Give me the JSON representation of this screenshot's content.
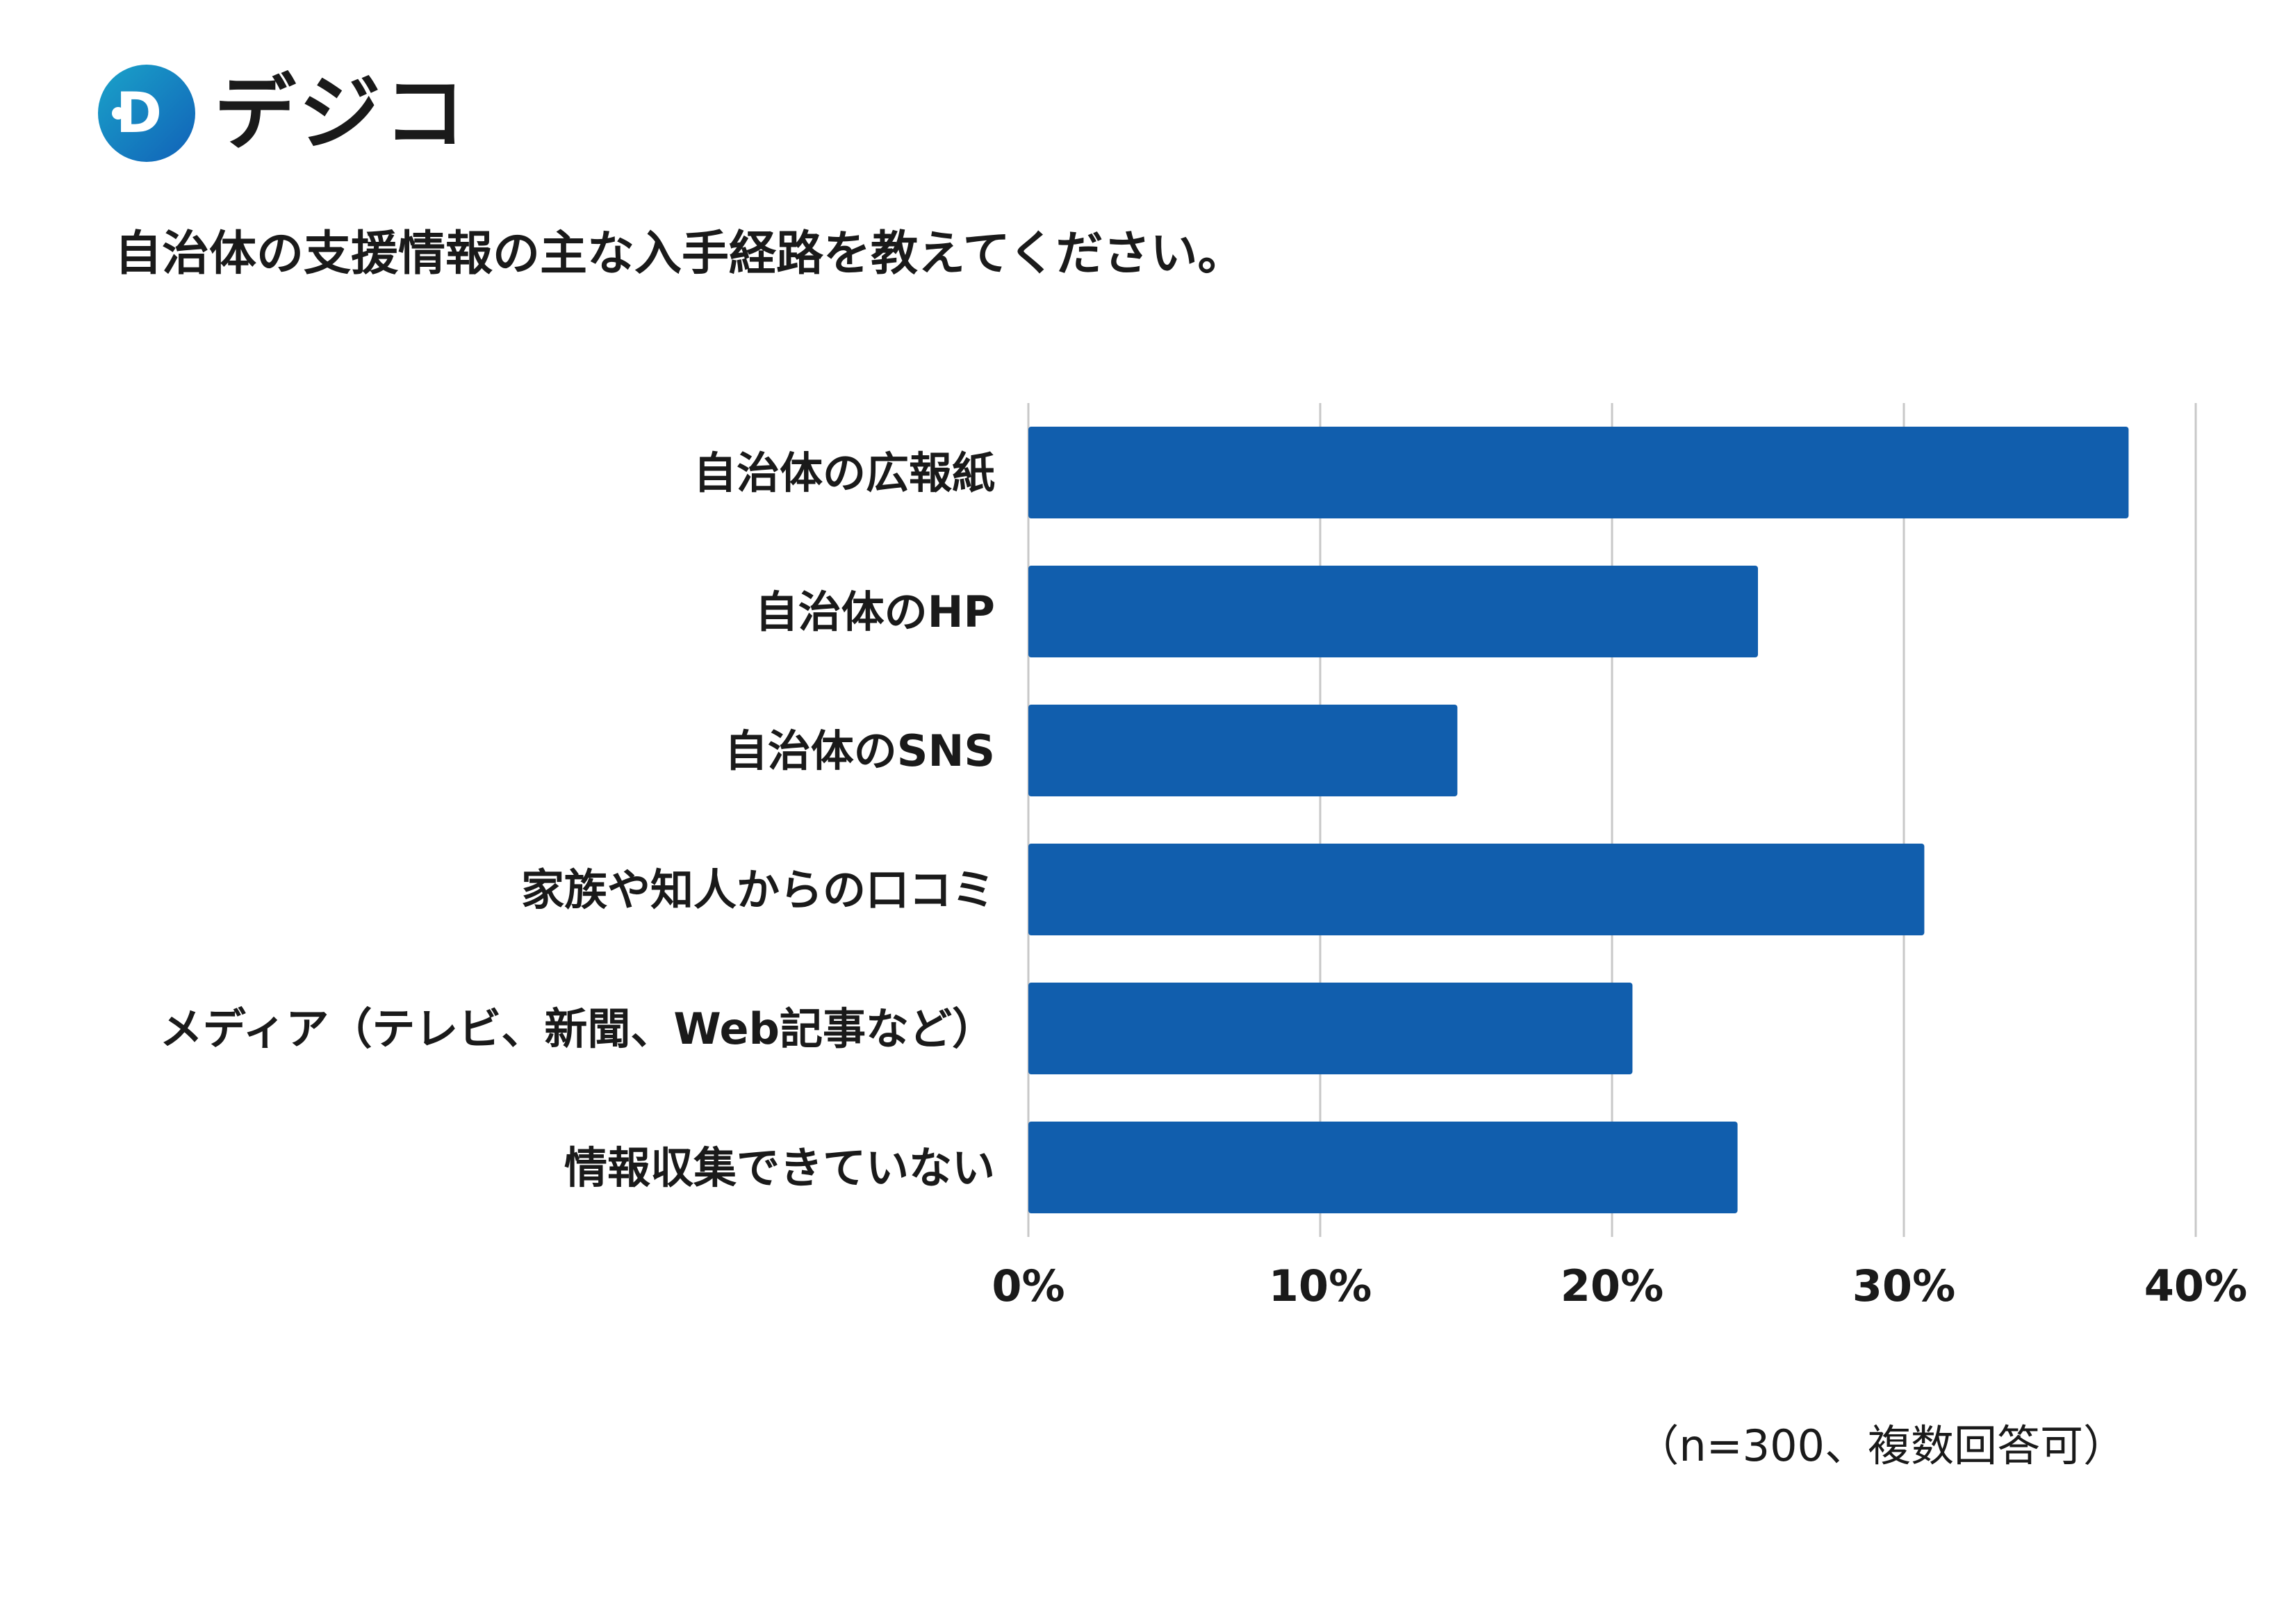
{
  "brand": {
    "name": "デジコ",
    "mark_letter": "D",
    "colors": {
      "mark_start": "#1aa3c9",
      "mark_end": "#1161b8",
      "dots": "#2a7fc9"
    }
  },
  "header": {
    "question": "自治体の支援情報の主な入手経路を教えてください。"
  },
  "colors": {
    "bar": "#115ead",
    "grid": "#c8c8c8",
    "text": "#1a1a1a"
  },
  "chart_data": {
    "type": "bar",
    "orientation": "horizontal",
    "title": "自治体の支援情報の主な入手経路を教えてください。",
    "categories": [
      "自治体の広報紙",
      "自治体のHP",
      "自治体のSNS",
      "家族や知人からの口コミ",
      "メディア（テレビ、新聞、Web記事など）",
      "情報収集できていない"
    ],
    "values": [
      37.7,
      25.0,
      14.7,
      30.7,
      20.7,
      24.3
    ],
    "unit": "%",
    "xlim": [
      0,
      40
    ],
    "xticks": [
      0,
      10,
      20,
      30,
      40
    ],
    "xtick_labels": [
      "0%",
      "10%",
      "20%",
      "30%",
      "40%"
    ],
    "grid": true,
    "xlabel": "",
    "ylabel": ""
  },
  "footnote": "（n=300、複数回答可）"
}
